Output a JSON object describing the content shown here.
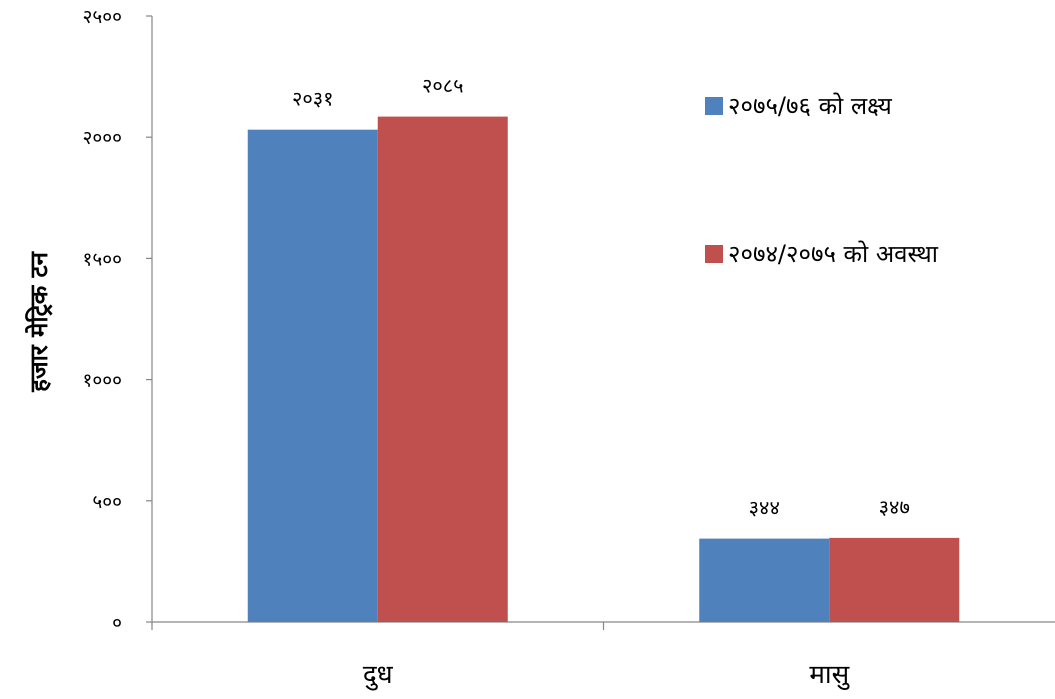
{
  "chart_data": {
    "type": "bar",
    "title": "",
    "xlabel": "",
    "ylabel": "हजार मेट्रिक टन",
    "categories": [
      "दुध",
      "मासु"
    ],
    "series": [
      {
        "name": "२०७५/७६ को लक्ष्य",
        "color": "#4F81BD",
        "values": [
          2031,
          344
        ],
        "labels": [
          "२०३१",
          "३४४"
        ]
      },
      {
        "name": "२०७४/२०७५ को अवस्था",
        "color": "#C0504D",
        "values": [
          2085,
          347
        ],
        "labels": [
          "२०८५",
          "३४७"
        ]
      }
    ],
    "ylim": [
      0,
      2500
    ],
    "y_ticks": [
      {
        "value": 0,
        "label": "०"
      },
      {
        "value": 500,
        "label": "५००"
      },
      {
        "value": 1000,
        "label": "१०००"
      },
      {
        "value": 1500,
        "label": "१५००"
      },
      {
        "value": 2000,
        "label": "२०००"
      },
      {
        "value": 2500,
        "label": "२५००"
      }
    ],
    "grid": false,
    "legend_position": "right"
  }
}
